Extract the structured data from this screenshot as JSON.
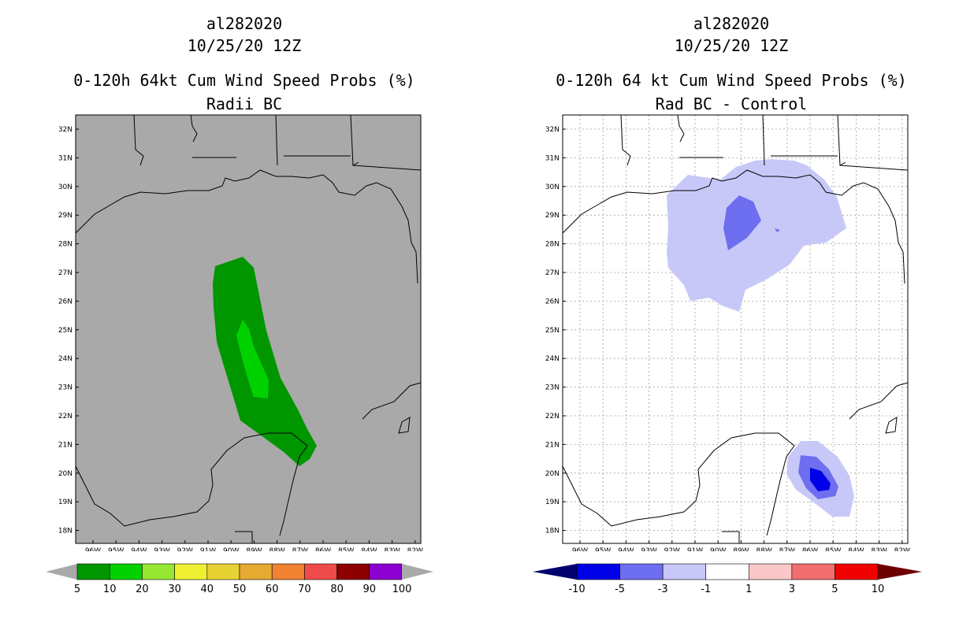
{
  "left": {
    "storm_id": "al282020",
    "date": "10/25/20 12Z",
    "title": "0-120h 64kt Cum Wind Speed Probs (%)",
    "subtitle": "Radii BC",
    "colorbar": {
      "colors": [
        "#009600",
        "#00d200",
        "#96e632",
        "#f0f032",
        "#e6d232",
        "#e6aa32",
        "#f08232",
        "#f04b4b",
        "#8c0000",
        "#8c00d2"
      ],
      "labels": [
        "5",
        "10",
        "20",
        "30",
        "40",
        "50",
        "60",
        "70",
        "80",
        "90",
        "100"
      ]
    }
  },
  "right": {
    "storm_id": "al282020",
    "date": "10/25/20 12Z",
    "title": "0-120h 64 kt Cum Wind Speed Probs (%)",
    "subtitle": "Rad BC - Control",
    "colorbar": {
      "colors": [
        "#0000e6",
        "#6e6ef0",
        "#c8c8f8",
        "#ffffff",
        "#fac8c8",
        "#f06e6e",
        "#f00000"
      ],
      "labels": [
        "-10",
        "-5",
        "-3",
        "-1",
        "1",
        "3",
        "5",
        "10"
      ]
    }
  },
  "axes": {
    "lat_labels": [
      "32N",
      "31N",
      "30N",
      "29N",
      "28N",
      "27N",
      "26N",
      "25N",
      "24N",
      "23N",
      "22N",
      "21N",
      "20N",
      "19N",
      "18N"
    ],
    "lon_labels": [
      "96W",
      "95W",
      "94W",
      "93W",
      "92W",
      "91W",
      "90W",
      "89W",
      "88W",
      "87W",
      "86W",
      "85W",
      "84W",
      "83W",
      "82W"
    ]
  },
  "colors": {
    "land_sea_fill": "#a9a9a9",
    "grid": "#a0a0a0"
  }
}
